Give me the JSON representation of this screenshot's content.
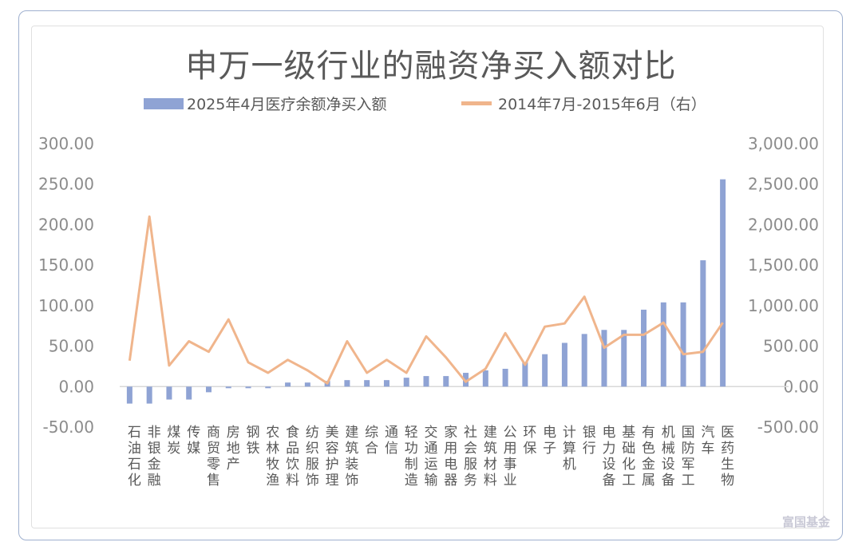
{
  "chart_data": {
    "type": "bar",
    "title": "申万一级行业的融资净买入额对比",
    "categories": [
      "石油石化",
      "非银金融",
      "煤炭",
      "传媒",
      "商贸零售",
      "房地产",
      "钢铁",
      "农林牧渔",
      "食品饮料",
      "纺织服饰",
      "美容护理",
      "建筑装饰",
      "综合",
      "通信",
      "轻功制造",
      "交通运输",
      "家用电器",
      "社会服务",
      "建筑材料",
      "公用事业",
      "环保",
      "电子",
      "计算机",
      "银行",
      "电力设备",
      "基础化工",
      "有色金属",
      "机械设备",
      "国防军工",
      "汽车",
      "医药生物"
    ],
    "series": [
      {
        "name": "2025年4月医疗余额净买入额",
        "type": "bar",
        "axis": "left",
        "color": "#8fa3d4",
        "values": [
          -21,
          -21,
          -16,
          -16,
          -7,
          -2,
          -2,
          -2,
          5,
          5,
          7,
          8,
          8,
          8,
          11,
          13,
          13,
          17,
          20,
          22,
          30,
          40,
          54,
          65,
          70,
          70,
          95,
          104,
          104,
          156,
          256
        ]
      },
      {
        "name": "2014年7月-2015年6月（右）",
        "type": "line",
        "axis": "right",
        "color": "#f0b58c",
        "values": [
          320,
          2100,
          260,
          560,
          430,
          830,
          300,
          170,
          330,
          200,
          40,
          560,
          170,
          330,
          170,
          620,
          360,
          60,
          220,
          660,
          270,
          740,
          780,
          1110,
          480,
          640,
          640,
          790,
          400,
          430,
          790
        ]
      }
    ],
    "y_left": {
      "min": -50,
      "max": 300,
      "step": 50,
      "ticks": [
        "-50.00",
        "0.00",
        "50.00",
        "100.00",
        "150.00",
        "200.00",
        "250.00",
        "300.00"
      ]
    },
    "y_right": {
      "min": -500,
      "max": 3000,
      "step": 500,
      "ticks": [
        "-500.00",
        "0.00",
        "500.00",
        "1,000.00",
        "1,500.00",
        "2,000.00",
        "2,500.00",
        "3,000.00"
      ]
    },
    "legend_position": "top",
    "grid": false
  },
  "watermark": "富国基金"
}
